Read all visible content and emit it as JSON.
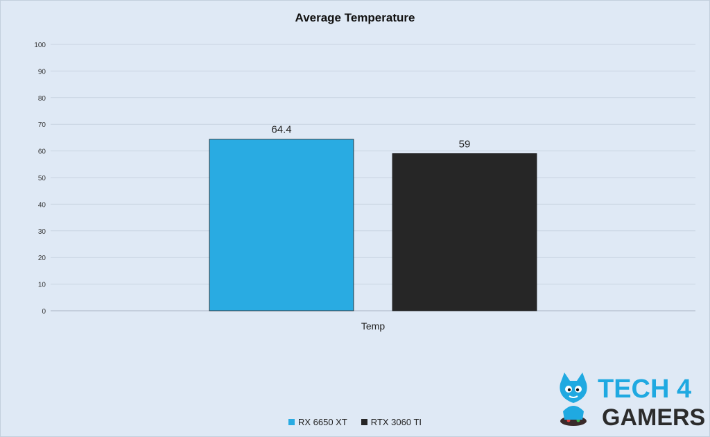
{
  "chart_data": {
    "type": "bar",
    "title": "Average Temperature",
    "categories": [
      "Temp"
    ],
    "series": [
      {
        "name": "RX 6650 XT",
        "values": [
          64.4
        ],
        "label": "64.4",
        "color": "#29abe2"
      },
      {
        "name": "RTX 3060 TI",
        "values": [
          59
        ],
        "label": "59",
        "color": "#262626"
      }
    ],
    "xlabel": "",
    "ylabel": "",
    "ylim": [
      0,
      100
    ],
    "yticks": [
      "100",
      "90",
      "80",
      "70",
      "60",
      "50",
      "40",
      "30",
      "20",
      "10",
      "0"
    ],
    "grid": true,
    "legend_position": "bottom"
  },
  "logo": {
    "text_top": "TECH 4",
    "text_bottom": "GAMERS",
    "color": "#1fa9e1",
    "mascot": "blue-cat-gamer-icon"
  }
}
